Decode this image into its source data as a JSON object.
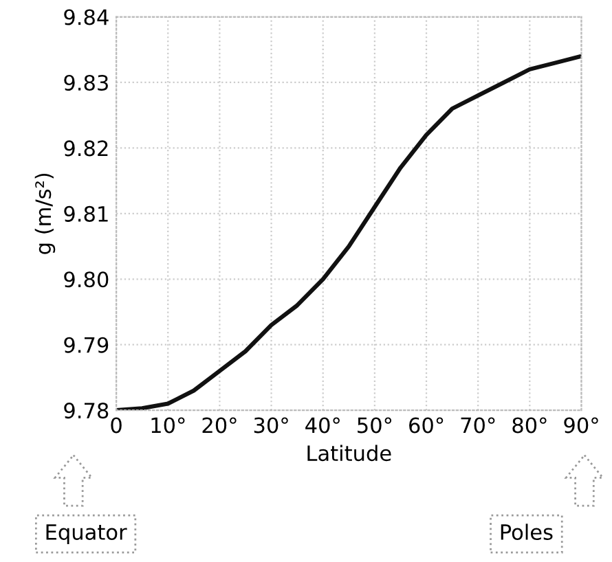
{
  "chart_data": {
    "type": "line",
    "xlabel": "Latitude",
    "ylabel": "g (m/s²)",
    "x": [
      0,
      5,
      10,
      15,
      20,
      25,
      30,
      35,
      40,
      45,
      50,
      55,
      60,
      65,
      70,
      75,
      80,
      85,
      90
    ],
    "series": [
      {
        "color": "#111111",
        "values": [
          9.78,
          9.7803,
          9.781,
          9.783,
          9.786,
          9.789,
          9.793,
          9.796,
          9.8,
          9.805,
          9.811,
          9.817,
          9.822,
          9.826,
          9.828,
          9.83,
          9.832,
          9.833,
          9.834
        ]
      }
    ],
    "xlim": [
      0,
      90
    ],
    "ylim": [
      9.78,
      9.84
    ],
    "xticks": [
      0,
      {
        "value": 10,
        "label": "10°"
      },
      {
        "value": 20,
        "label": "20°"
      },
      {
        "value": 30,
        "label": "30°"
      },
      {
        "value": 40,
        "label": "40°"
      },
      {
        "value": 50,
        "label": "50°"
      },
      {
        "value": 60,
        "label": "60°"
      },
      {
        "value": 70,
        "label": "70°"
      },
      {
        "value": 80,
        "label": "80°"
      },
      {
        "value": 90,
        "label": "90°"
      }
    ],
    "yticks": [
      {
        "value": 9.78,
        "label": "9.78"
      },
      {
        "value": 9.79,
        "label": "9.79"
      },
      {
        "value": 9.8,
        "label": "9.80"
      },
      {
        "value": 9.81,
        "label": "9.81"
      },
      {
        "value": 9.82,
        "label": "9.82"
      },
      {
        "value": 9.83,
        "label": "9.83"
      },
      {
        "value": 9.84,
        "label": "9.84"
      }
    ],
    "grid": true,
    "line_style": "solid",
    "annotations": [
      "Equator",
      "Poles"
    ]
  }
}
